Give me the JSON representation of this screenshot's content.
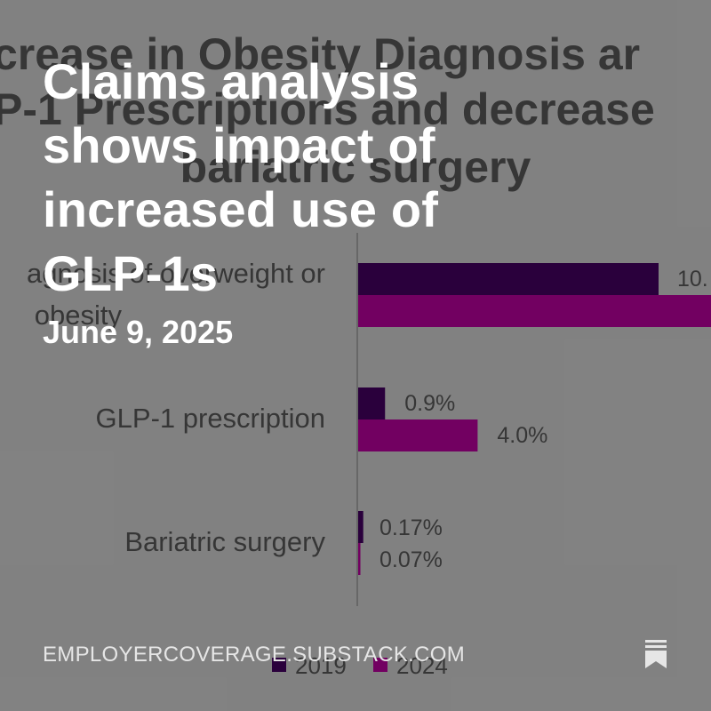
{
  "post": {
    "title": "Claims analysis shows impact of increased use of GLP-1s",
    "date": "June 9, 2025",
    "domain": "EMPLOYERCOVERAGE.SUBSTACK.COM",
    "icons": {
      "bookmark": "bookmark-icon"
    }
  },
  "colors": {
    "background": "#8a8a8a",
    "headline": "#ffffff",
    "series_2019": "#2d0040",
    "series_2024": "#7a0068",
    "chart_text": "#3a3a3a"
  },
  "chart_data": {
    "type": "bar",
    "orientation": "horizontal",
    "title_lines": [
      "crease in Obesity Diagnosis ar",
      "P-1 Prescriptions and decrease",
      "bariatric surgery"
    ],
    "categories": [
      "agnosis of overweight or obesity",
      "GLP-1 prescription",
      "Bariatric surgery"
    ],
    "series": [
      {
        "name": "2019",
        "values": [
          10.0,
          0.9,
          0.17
        ]
      },
      {
        "name": "2024",
        "values": [
          null,
          4.0,
          0.07
        ]
      }
    ],
    "data_labels": [
      [
        "10.",
        "0.9%",
        "0.17%"
      ],
      [
        "",
        "4.0%",
        "0.07%"
      ]
    ],
    "legend": [
      "2019",
      "2024"
    ],
    "legend_position": "bottom",
    "grid": false
  }
}
